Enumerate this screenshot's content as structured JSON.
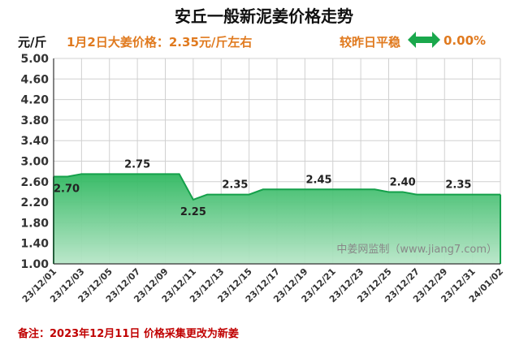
{
  "header": {
    "title": "安丘一般新泥姜价格走势",
    "unit": "元/斤",
    "subtitle": "1月2日大姜价格：2.35元/斤左右",
    "compare_label": "较昨日平稳",
    "compare_value": "0.00%",
    "arrow_icon": "double-arrow-icon"
  },
  "footer": {
    "note": "备注：2023年12月11日 价格采集更改为新姜"
  },
  "watermark": "中姜网监制（www.jiang7.com）",
  "colors": {
    "area_fill_top": "#2fb860",
    "area_fill_bottom": "#b8e6c8",
    "line": "#14a04a",
    "arrow": "#1aa84c",
    "accent_text": "#e07a1f",
    "note_text": "#c00000"
  },
  "chart_data": {
    "type": "area",
    "title": "安丘一般新泥姜价格走势",
    "ylabel": "元/斤",
    "xlabel": "",
    "ylim": [
      1.0,
      5.0
    ],
    "yticks": [
      "1.00",
      "1.40",
      "1.80",
      "2.20",
      "2.60",
      "3.00",
      "3.40",
      "3.80",
      "4.20",
      "4.60",
      "5.00"
    ],
    "xticks": [
      "23/12/01",
      "23/12/03",
      "23/12/05",
      "23/12/07",
      "23/12/09",
      "23/12/11",
      "23/12/13",
      "23/12/15",
      "23/12/17",
      "23/12/19",
      "23/12/21",
      "23/12/23",
      "23/12/25",
      "23/12/27",
      "23/12/29",
      "23/12/31",
      "24/01/02"
    ],
    "grid": true,
    "series": [
      {
        "x": [
          "23/12/01",
          "23/12/02",
          "23/12/03",
          "23/12/04",
          "23/12/05",
          "23/12/06",
          "23/12/07",
          "23/12/08",
          "23/12/09",
          "23/12/10",
          "23/12/11",
          "23/12/12",
          "23/12/13",
          "23/12/14",
          "23/12/15",
          "23/12/16",
          "23/12/17",
          "23/12/18",
          "23/12/19",
          "23/12/20",
          "23/12/21",
          "23/12/22",
          "23/12/23",
          "23/12/24",
          "23/12/25",
          "23/12/26",
          "23/12/27",
          "23/12/28",
          "23/12/29",
          "23/12/30",
          "23/12/31",
          "24/01/01",
          "24/01/02"
        ],
        "values": [
          2.7,
          2.7,
          2.75,
          2.75,
          2.75,
          2.75,
          2.75,
          2.75,
          2.75,
          2.75,
          2.25,
          2.35,
          2.35,
          2.35,
          2.35,
          2.45,
          2.45,
          2.45,
          2.45,
          2.45,
          2.45,
          2.45,
          2.45,
          2.45,
          2.4,
          2.4,
          2.35,
          2.35,
          2.35,
          2.35,
          2.35,
          2.35,
          2.35
        ]
      }
    ],
    "data_labels": [
      {
        "x": "23/12/01",
        "text": "2.70",
        "position": "below"
      },
      {
        "x": "23/12/07",
        "text": "2.75",
        "position": "above"
      },
      {
        "x": "23/12/11",
        "text": "2.25",
        "position": "below"
      },
      {
        "x": "23/12/14",
        "text": "2.35",
        "position": "above"
      },
      {
        "x": "23/12/20",
        "text": "2.45",
        "position": "above"
      },
      {
        "x": "23/12/26",
        "text": "2.40",
        "position": "above"
      },
      {
        "x": "23/12/30",
        "text": "2.35",
        "position": "above"
      }
    ]
  }
}
